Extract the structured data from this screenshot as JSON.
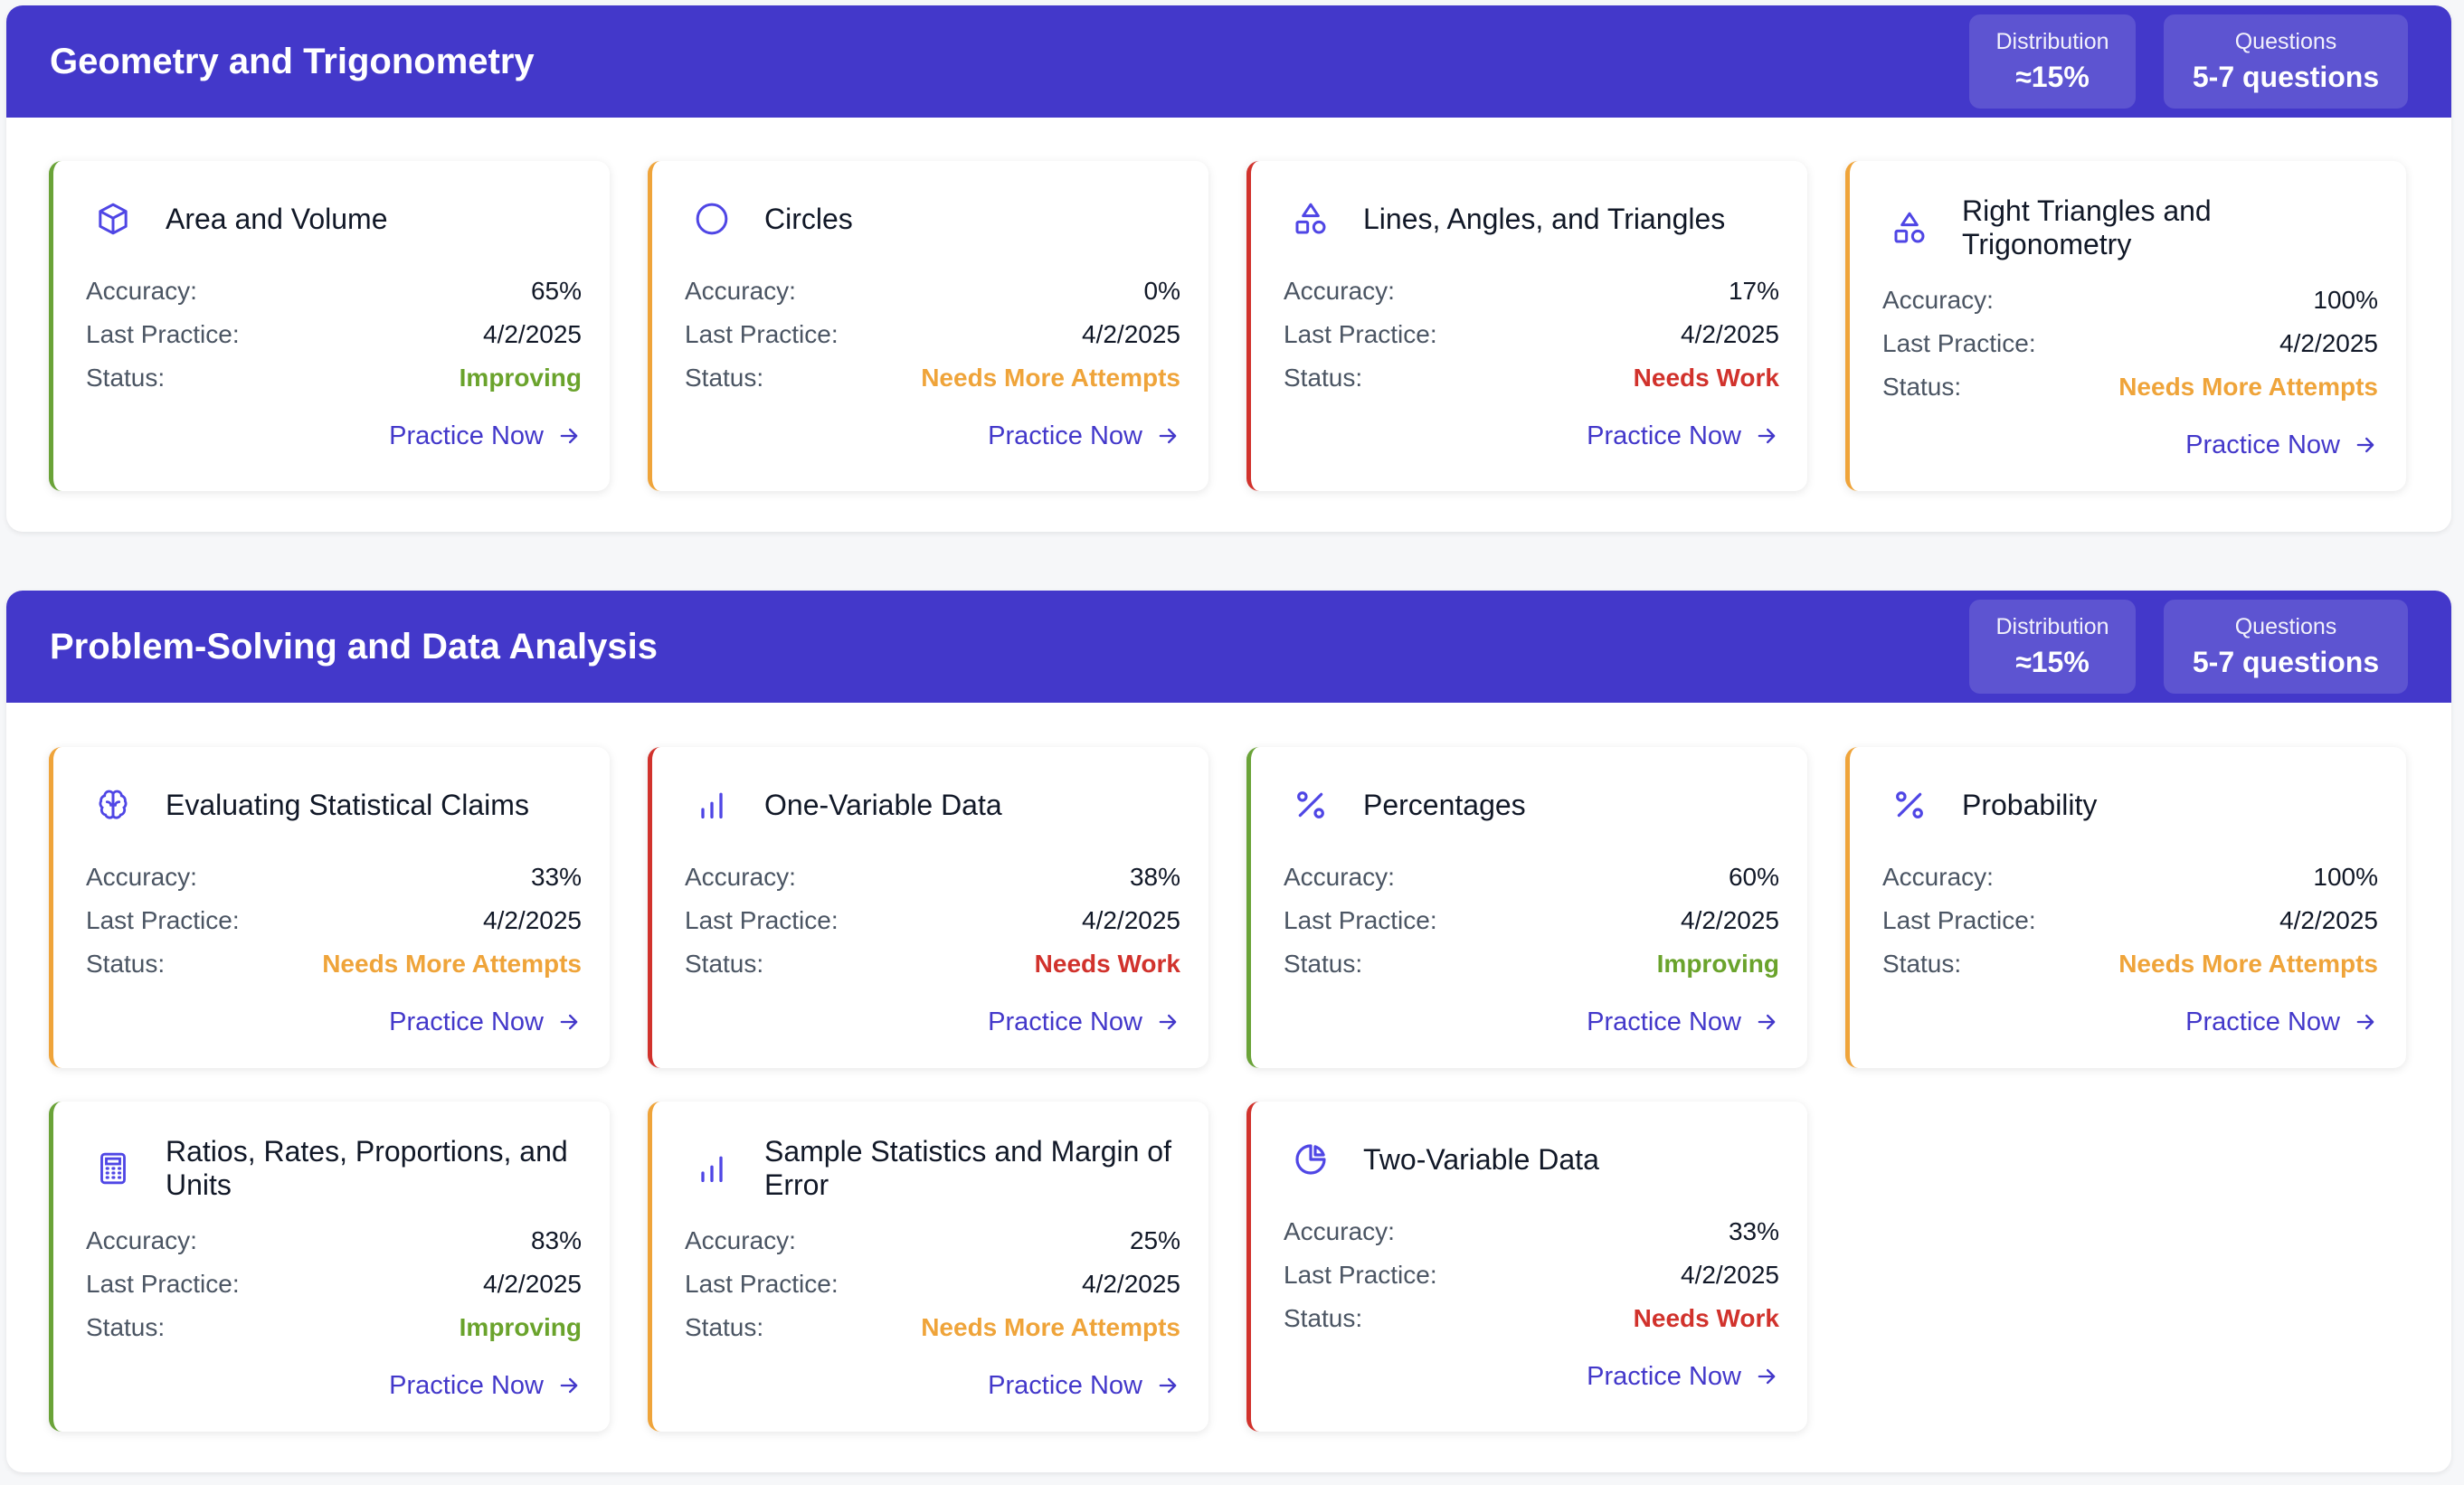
{
  "colors": {
    "header": "#4338ca",
    "improving": "#6aa32c",
    "needs_more_attempts": "#efa43a",
    "needs_work": "#d1322c",
    "accent": "#4f46e5"
  },
  "labels": {
    "accuracy": "Accuracy:",
    "last_practice": "Last Practice:",
    "status": "Status:",
    "practice_now": "Practice Now"
  },
  "sections": [
    {
      "title": "Geometry and Trigonometry",
      "distribution_label": "Distribution",
      "distribution_value": "≈15%",
      "questions_label": "Questions",
      "questions_value": "5-7 questions",
      "cards": [
        {
          "title": "Area and Volume",
          "icon": "cube-icon",
          "accuracy": "65%",
          "last_practice": "4/2/2025",
          "status": "Improving"
        },
        {
          "title": "Circles",
          "icon": "circle-icon",
          "accuracy": "0%",
          "last_practice": "4/2/2025",
          "status": "Needs More Attempts"
        },
        {
          "title": "Lines, Angles, and Triangles",
          "icon": "shapes-icon",
          "accuracy": "17%",
          "last_practice": "4/2/2025",
          "status": "Needs Work"
        },
        {
          "title": "Right Triangles and Trigonometry",
          "icon": "shapes-icon",
          "accuracy": "100%",
          "last_practice": "4/2/2025",
          "status": "Needs More Attempts"
        }
      ]
    },
    {
      "title": "Problem-Solving and Data Analysis",
      "distribution_label": "Distribution",
      "distribution_value": "≈15%",
      "questions_label": "Questions",
      "questions_value": "5-7 questions",
      "cards": [
        {
          "title": "Evaluating Statistical Claims",
          "icon": "brain-icon",
          "accuracy": "33%",
          "last_practice": "4/2/2025",
          "status": "Needs More Attempts"
        },
        {
          "title": "One-Variable Data",
          "icon": "bar-chart-icon",
          "accuracy": "38%",
          "last_practice": "4/2/2025",
          "status": "Needs Work"
        },
        {
          "title": "Percentages",
          "icon": "percent-icon",
          "accuracy": "60%",
          "last_practice": "4/2/2025",
          "status": "Improving"
        },
        {
          "title": "Probability",
          "icon": "percent-icon",
          "accuracy": "100%",
          "last_practice": "4/2/2025",
          "status": "Needs More Attempts"
        },
        {
          "title": "Ratios, Rates, Proportions, and Units",
          "icon": "calculator-icon",
          "accuracy": "83%",
          "last_practice": "4/2/2025",
          "status": "Improving"
        },
        {
          "title": "Sample Statistics and Margin of Error",
          "icon": "bar-chart-icon",
          "accuracy": "25%",
          "last_practice": "4/2/2025",
          "status": "Needs More Attempts"
        },
        {
          "title": "Two-Variable Data",
          "icon": "pie-chart-icon",
          "accuracy": "33%",
          "last_practice": "4/2/2025",
          "status": "Needs Work"
        }
      ]
    }
  ]
}
